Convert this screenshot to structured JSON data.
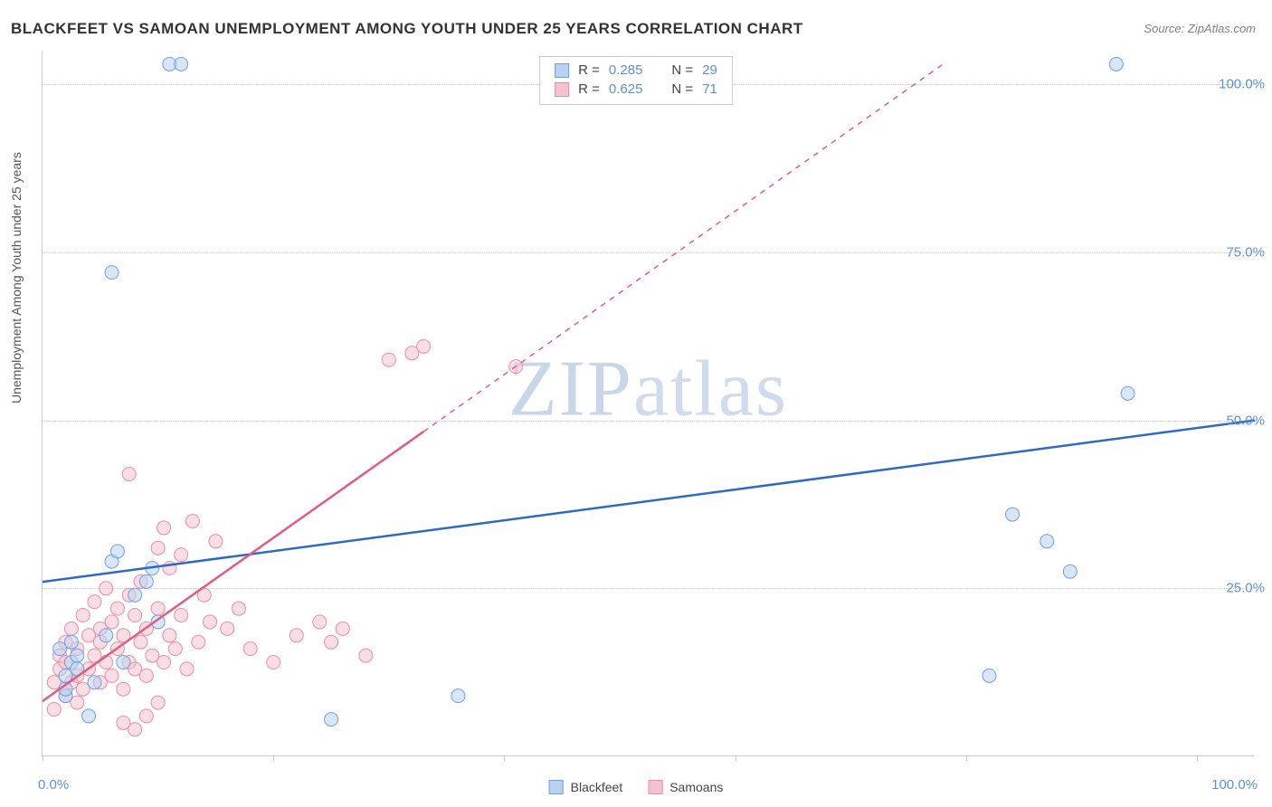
{
  "title": "BLACKFEET VS SAMOAN UNEMPLOYMENT AMONG YOUTH UNDER 25 YEARS CORRELATION CHART",
  "source": "Source: ZipAtlas.com",
  "y_axis_label": "Unemployment Among Youth under 25 years",
  "watermark_a": "ZIP",
  "watermark_b": "atlas",
  "chart": {
    "type": "scatter",
    "xlim": [
      0,
      105
    ],
    "ylim": [
      0,
      105
    ],
    "grid_y": [
      25,
      50,
      75,
      100
    ],
    "y_tick_labels": [
      "25.0%",
      "50.0%",
      "75.0%",
      "100.0%"
    ],
    "x_tick_positions": [
      0,
      20,
      40,
      60,
      80,
      100
    ],
    "x_tick_label_left": "0.0%",
    "x_tick_label_right": "100.0%",
    "background_color": "#ffffff",
    "grid_color": "#cccccc",
    "label_color": "#555555",
    "tick_label_color": "#5b8fd9",
    "tick_label_fontsize": 15,
    "title_fontsize": 17,
    "marker_radius": 7.5,
    "marker_opacity": 0.55,
    "trendline_width": 2.5,
    "series": [
      {
        "name": "Blackfeet",
        "color": "#6d9fe0",
        "fill": "#b9d2f0",
        "trend_color": "#2f69c7",
        "r": "0.285",
        "n": "29",
        "trend": {
          "x1": -2,
          "y1": 25.5,
          "x2": 105,
          "y2": 50
        },
        "trend_dash_from_x": null,
        "points": [
          [
            2,
            9
          ],
          [
            2,
            10
          ],
          [
            2,
            12
          ],
          [
            2.5,
            14
          ],
          [
            3,
            15
          ],
          [
            3,
            13
          ],
          [
            4,
            6
          ],
          [
            6,
            29
          ],
          [
            6.5,
            30.5
          ],
          [
            9,
            26
          ],
          [
            9.5,
            28
          ],
          [
            11,
            103
          ],
          [
            12,
            103
          ],
          [
            6,
            72
          ],
          [
            25,
            5.5
          ],
          [
            36,
            9
          ],
          [
            82,
            12
          ],
          [
            84,
            36
          ],
          [
            87,
            32
          ],
          [
            89,
            27.5
          ],
          [
            93,
            103
          ],
          [
            94,
            54
          ],
          [
            1.5,
            16
          ],
          [
            2.5,
            17
          ],
          [
            4.5,
            11
          ],
          [
            5.5,
            18
          ],
          [
            7,
            14
          ],
          [
            8,
            24
          ],
          [
            10,
            20
          ]
        ]
      },
      {
        "name": "Samoans",
        "color": "#e98da4",
        "fill": "#f6c2d0",
        "trend_color": "#e15b82",
        "r": "0.625",
        "n": "71",
        "trend": {
          "x1": -1,
          "y1": 7,
          "x2": 78,
          "y2": 103
        },
        "trend_dash_from_x": 33,
        "points": [
          [
            1,
            7
          ],
          [
            1,
            11
          ],
          [
            1.5,
            13
          ],
          [
            1.5,
            15
          ],
          [
            2,
            9
          ],
          [
            2,
            14
          ],
          [
            2,
            17
          ],
          [
            2.5,
            11
          ],
          [
            2.5,
            19
          ],
          [
            3,
            8
          ],
          [
            3,
            12
          ],
          [
            3,
            16
          ],
          [
            3.5,
            10
          ],
          [
            3.5,
            21
          ],
          [
            4,
            13
          ],
          [
            4,
            18
          ],
          [
            4.5,
            15
          ],
          [
            4.5,
            23
          ],
          [
            5,
            11
          ],
          [
            5,
            17
          ],
          [
            5,
            19
          ],
          [
            5.5,
            14
          ],
          [
            5.5,
            25
          ],
          [
            6,
            12
          ],
          [
            6,
            20
          ],
          [
            6.5,
            16
          ],
          [
            6.5,
            22
          ],
          [
            7,
            10
          ],
          [
            7,
            18
          ],
          [
            7.5,
            14
          ],
          [
            7.5,
            24
          ],
          [
            8,
            13
          ],
          [
            8,
            21
          ],
          [
            8.5,
            17
          ],
          [
            8.5,
            26
          ],
          [
            9,
            12
          ],
          [
            9,
            19
          ],
          [
            9.5,
            15
          ],
          [
            10,
            22
          ],
          [
            10,
            31
          ],
          [
            10.5,
            14
          ],
          [
            10.5,
            34
          ],
          [
            11,
            18
          ],
          [
            11,
            28
          ],
          [
            11.5,
            16
          ],
          [
            12,
            21
          ],
          [
            12,
            30
          ],
          [
            12.5,
            13
          ],
          [
            13,
            35
          ],
          [
            13.5,
            17
          ],
          [
            14,
            24
          ],
          [
            14.5,
            20
          ],
          [
            15,
            32
          ],
          [
            7,
            5
          ],
          [
            8,
            4
          ],
          [
            9,
            6
          ],
          [
            10,
            8
          ],
          [
            7.5,
            42
          ],
          [
            16,
            19
          ],
          [
            17,
            22
          ],
          [
            18,
            16
          ],
          [
            20,
            14
          ],
          [
            22,
            18
          ],
          [
            24,
            20
          ],
          [
            25,
            17
          ],
          [
            26,
            19
          ],
          [
            28,
            15
          ],
          [
            32,
            60
          ],
          [
            33,
            61
          ],
          [
            30,
            59
          ],
          [
            41,
            58
          ]
        ]
      }
    ]
  },
  "legend_bottom": {
    "items": [
      {
        "label": "Blackfeet",
        "fill": "#b9d2f0",
        "border": "#6d9fe0"
      },
      {
        "label": "Samoans",
        "fill": "#f6c2d0",
        "border": "#e98da4"
      }
    ]
  },
  "legend_top": {
    "rows": [
      {
        "fill": "#b9d2f0",
        "border": "#6d9fe0",
        "r_label": "R =",
        "r_val": "0.285",
        "n_label": "N =",
        "n_val": "29"
      },
      {
        "fill": "#f6c2d0",
        "border": "#e98da4",
        "r_label": "R =",
        "r_val": "0.625",
        "n_label": "N =",
        "n_val": "71"
      }
    ]
  }
}
